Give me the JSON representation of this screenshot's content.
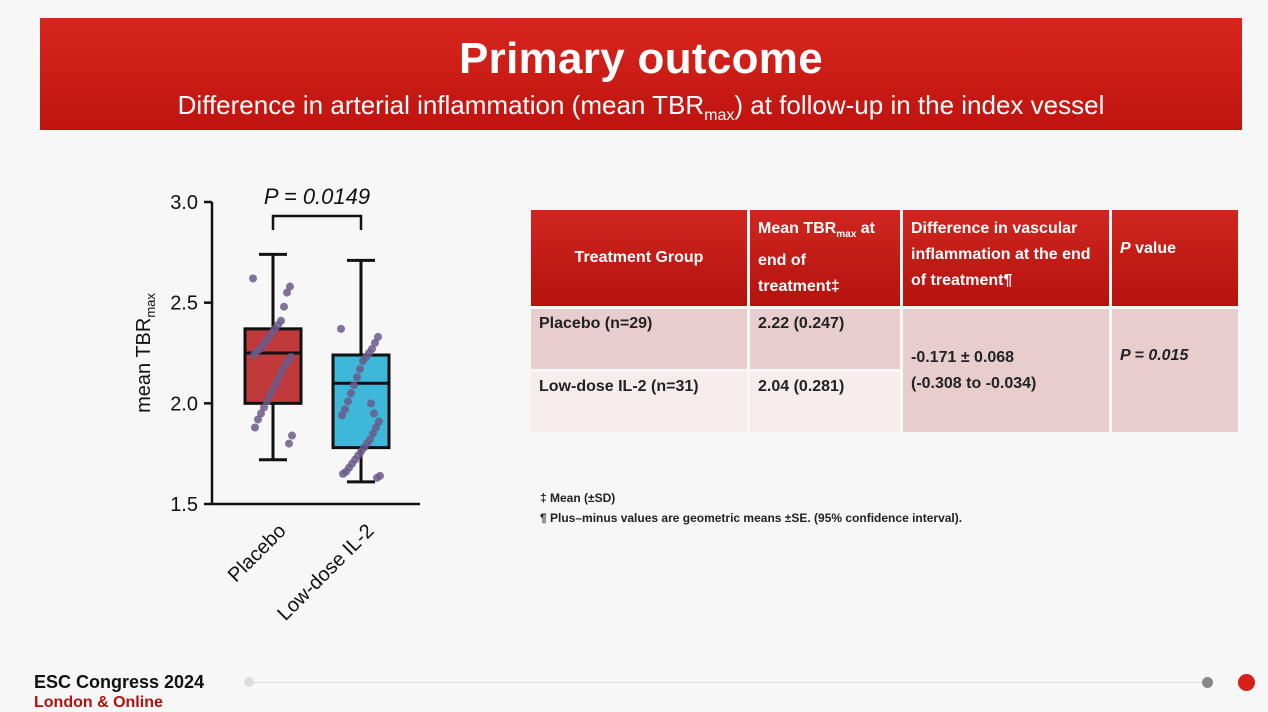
{
  "header": {
    "title": "Primary outcome",
    "subtitle_pre": "Difference in arterial inflammation (mean TBR",
    "subtitle_sub": "max",
    "subtitle_post": ") at follow-up in the index vessel"
  },
  "chart_data": {
    "type": "box",
    "ylabel": "mean TBR",
    "ylabel_sub": "max",
    "ylim": [
      1.5,
      3.0
    ],
    "yticks": [
      "1.5",
      "2.0",
      "2.5",
      "3.0"
    ],
    "categories": [
      "Placebo",
      "Low-dose IL-2"
    ],
    "annotation": "P = 0.0149",
    "colors": {
      "placebo": "#c0393b",
      "il2": "#3fb7d9",
      "points": "#6b5b8a"
    },
    "boxes": [
      {
        "name": "Placebo",
        "min": 1.72,
        "q1": 2.0,
        "median": 2.25,
        "q3": 2.37,
        "max": 2.74,
        "points": [
          2.62,
          2.58,
          2.55,
          2.48,
          2.41,
          2.39,
          2.37,
          2.35,
          2.33,
          2.31,
          2.29,
          2.27,
          2.26,
          2.24,
          2.23,
          2.21,
          2.19,
          2.16,
          2.13,
          2.1,
          2.07,
          2.04,
          2.01,
          1.98,
          1.95,
          1.92,
          1.88,
          1.84,
          1.8
        ]
      },
      {
        "name": "Low-dose IL-2",
        "min": 1.61,
        "q1": 1.78,
        "median": 2.1,
        "q3": 2.24,
        "max": 2.71,
        "points": [
          2.37,
          2.33,
          2.3,
          2.27,
          2.25,
          2.23,
          2.21,
          2.17,
          2.13,
          2.09,
          2.05,
          2.01,
          1.97,
          1.94,
          1.91,
          1.88,
          1.85,
          1.82,
          1.8,
          1.78,
          1.76,
          1.74,
          1.72,
          1.7,
          1.68,
          1.66,
          1.65,
          1.64,
          1.63,
          1.95,
          2.0
        ]
      }
    ]
  },
  "table": {
    "headers": {
      "group": "Treatment Group",
      "mean_pre": "Mean TBR",
      "mean_sub": "max",
      "mean_post": "at end of treatment‡",
      "diff": "Difference in vascular inflammation at the end of treatment¶",
      "p_italic": "P",
      "p_rest": " value"
    },
    "rows": [
      {
        "group": "Placebo (n=29)",
        "mean": "2.22 (0.247)"
      },
      {
        "group": "Low-dose IL-2 (n=31)",
        "mean": "2.04 (0.281)"
      }
    ],
    "diff_line1": "-0.171 ± 0.068",
    "diff_line2": "(-0.308 to -0.034)",
    "p_value": "P = 0.015"
  },
  "notes": [
    "‡ Mean (±SD)",
    "¶ Plus–minus values are geometric means ±SE. (95% confidence interval)."
  ],
  "footer": {
    "brand": "ESC Congress 2024",
    "sub": "London & Online"
  }
}
